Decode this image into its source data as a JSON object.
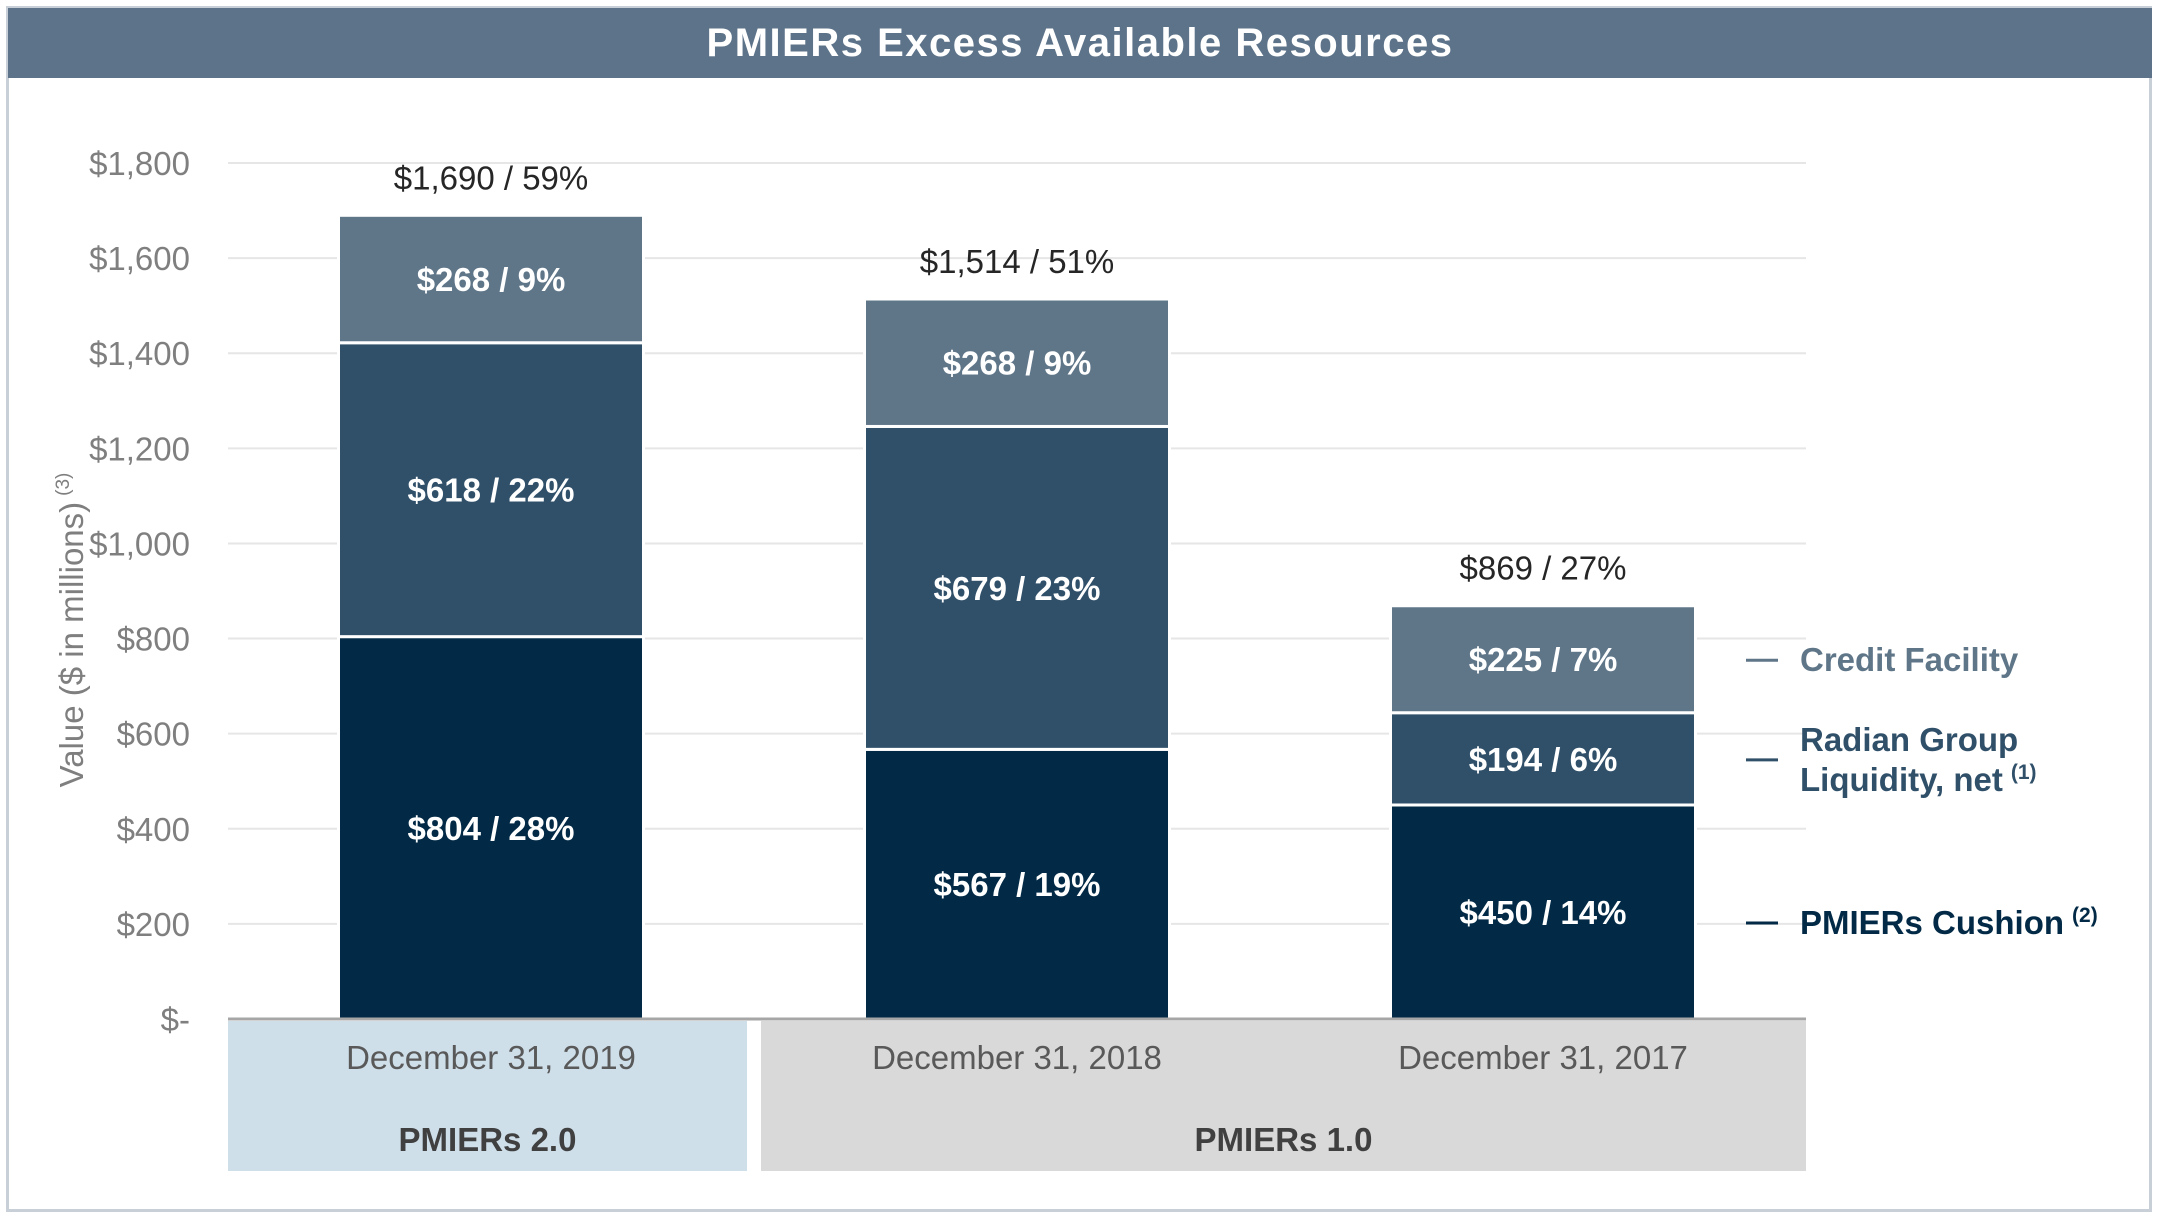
{
  "chart_data": {
    "type": "bar",
    "stacked": true,
    "title": "PMIERs Excess Available Resources",
    "ylabel": "Value ($ in millions)",
    "ylabel_footnote": "(3)",
    "ylim": [
      0,
      1800
    ],
    "ytick_values": [
      0,
      200,
      400,
      600,
      800,
      1000,
      1200,
      1400,
      1600,
      1800
    ],
    "ytick_labels": [
      "$-",
      "$200",
      "$400",
      "$600",
      "$800",
      "$1,000",
      "$1,200",
      "$1,400",
      "$1,600",
      "$1,800"
    ],
    "grid": true,
    "categories": [
      "December 31, 2019",
      "December 31, 2018",
      "December 31, 2017"
    ],
    "series": [
      {
        "name": "PMIERs Cushion",
        "footnote": "(2)",
        "color": "#022a46",
        "values": [
          804,
          567,
          450
        ],
        "labels": [
          "$804 / 28%",
          "$567 / 19%",
          "$450 / 14%"
        ]
      },
      {
        "name": "Radian Group Liquidity, net",
        "name_lines": [
          "Radian Group",
          "Liquidity, net"
        ],
        "footnote": "(1)",
        "color": "#30506a",
        "values": [
          618,
          679,
          194
        ],
        "labels": [
          "$618 / 22%",
          "$679 / 23%",
          "$194 / 6%"
        ]
      },
      {
        "name": "Credit Facility",
        "footnote": "",
        "color": "#5f7689",
        "values": [
          268,
          268,
          225
        ],
        "labels": [
          "$268 / 9%",
          "$268 / 9%",
          "$225 / 7%"
        ]
      }
    ],
    "totals": [
      1690,
      1514,
      869
    ],
    "total_labels": [
      "$1,690 / 59%",
      "$1,514 / 51%",
      "$869 / 27%"
    ],
    "groups": [
      {
        "label": "PMIERs 2.0",
        "categories": [
          "December 31, 2019"
        ],
        "color": "#cfdfea"
      },
      {
        "label": "PMIERs 1.0",
        "categories": [
          "December 31, 2018",
          "December 31, 2017"
        ],
        "color": "#d9d9d9"
      }
    ],
    "legend_position": "right"
  }
}
